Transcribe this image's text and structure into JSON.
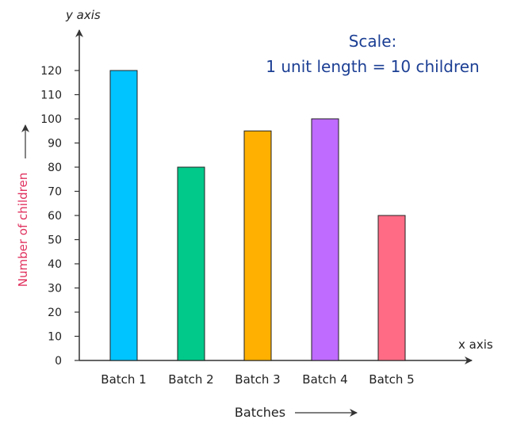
{
  "chart_data": {
    "type": "bar",
    "categories": [
      "Batch 1",
      "Batch 2",
      "Batch 3",
      "Batch 4",
      "Batch 5"
    ],
    "values": [
      120,
      80,
      95,
      100,
      60
    ],
    "colors": [
      "#00c4ff",
      "#00c98a",
      "#ffb000",
      "#bf6bff",
      "#ff6b84"
    ],
    "ylim": [
      0,
      120
    ],
    "yticks": [
      0,
      10,
      20,
      30,
      40,
      50,
      60,
      70,
      80,
      90,
      100,
      110,
      120
    ],
    "xlabel": "Batches",
    "ylabel": "Number of children",
    "ylabel_color": "#e0325f",
    "x_axis_name": "x axis",
    "y_axis_name": "y axis",
    "scale_title": "Scale:",
    "scale_text": "1 unit length = 10 children",
    "scale_color": "#1c3f94",
    "grid": false
  }
}
